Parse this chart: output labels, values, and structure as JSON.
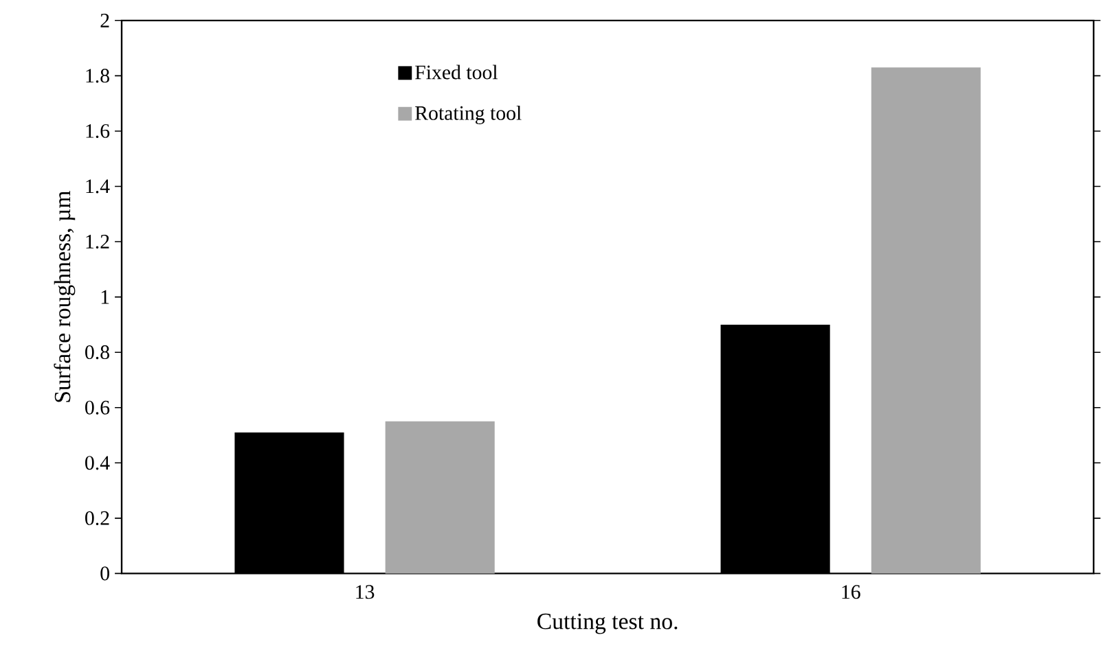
{
  "chart_data": {
    "type": "bar",
    "xlabel": "Cutting test no.",
    "ylabel": "Surface roughness, µm",
    "categories": [
      "13",
      "16"
    ],
    "series": [
      {
        "name": "Fixed tool",
        "color": "#000000",
        "values": [
          0.51,
          0.9
        ]
      },
      {
        "name": "Rotating tool",
        "color": "#a8a8a8",
        "values": [
          0.55,
          1.83
        ]
      }
    ],
    "ylim": [
      0,
      2
    ],
    "yticks": [
      0,
      0.2,
      0.4,
      0.6,
      0.8,
      1,
      1.2,
      1.4,
      1.6,
      1.8,
      2
    ],
    "legend": "top left",
    "grid": false
  }
}
